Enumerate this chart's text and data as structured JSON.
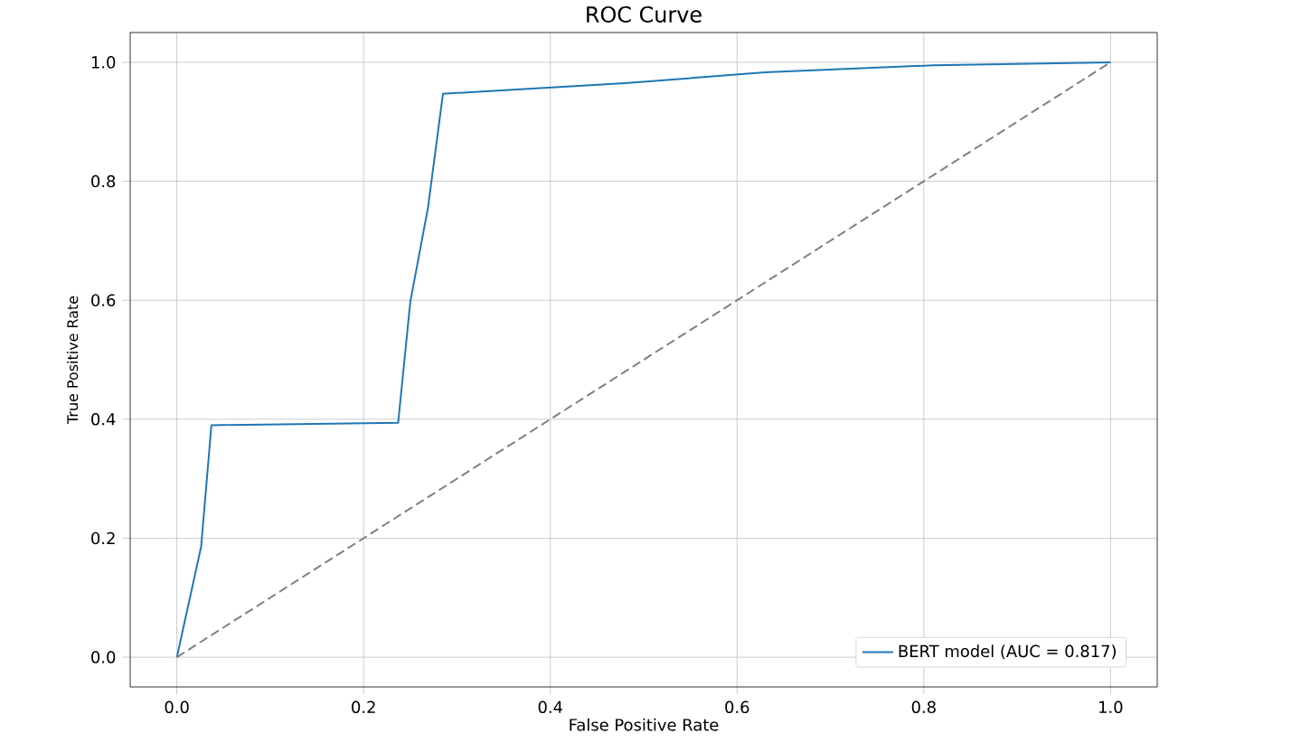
{
  "chart_data": {
    "type": "line",
    "title": "ROC Curve",
    "xlabel": "False Positive Rate",
    "ylabel": "True Positive Rate",
    "xlim": [
      -0.05,
      1.05
    ],
    "ylim": [
      -0.05,
      1.05
    ],
    "xticks": [
      {
        "value": 0,
        "label": "0.0"
      },
      0.2,
      0.4,
      0.6,
      0.8,
      {
        "value": 1,
        "label": "1.0"
      }
    ],
    "yticks": [
      {
        "value": 0,
        "label": "0.0"
      },
      0.2,
      0.4,
      0.6,
      0.8,
      {
        "value": 1,
        "label": "1.0"
      }
    ],
    "grid": true,
    "legend": "bottom right",
    "marker": "none",
    "series": [
      {
        "name": "BERT model (AUC = 0.817)",
        "color": "#1f77b4",
        "line_style": "solid",
        "x": [
          0,
          0.026,
          0.037,
          0.237,
          0.25,
          0.269,
          0.285,
          0.48,
          0.63,
          0.81,
          1.0
        ],
        "values": [
          0,
          0.186,
          0.39,
          0.394,
          0.597,
          0.756,
          0.947,
          0.965,
          0.983,
          0.995,
          1.0
        ]
      },
      {
        "color": "#808080",
        "line_style": "dashed",
        "x": [
          0,
          1
        ],
        "values": [
          0,
          1
        ]
      }
    ]
  }
}
